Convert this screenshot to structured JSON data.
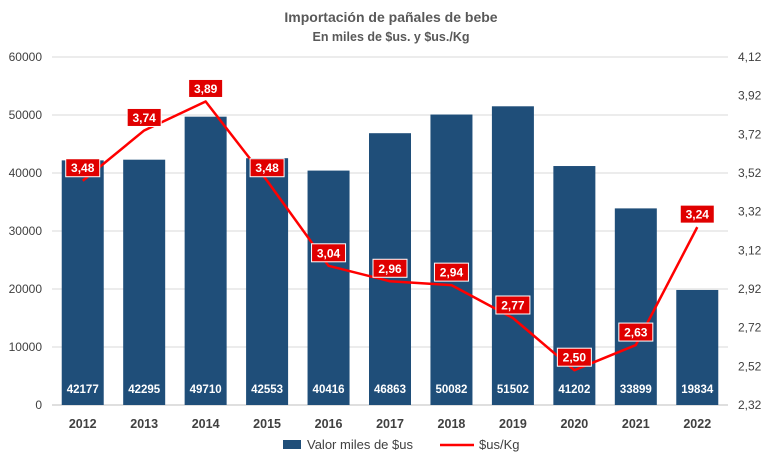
{
  "chart_data": {
    "type": "bar",
    "title": "Importación de pañales de bebe",
    "subtitle": "En miles de $us. y $us./Kg",
    "categories": [
      "2012",
      "2013",
      "2014",
      "2015",
      "2016",
      "2017",
      "2018",
      "2019",
      "2020",
      "2021",
      "2022"
    ],
    "ylim": [
      0,
      60000
    ],
    "y_ticks": [
      "0",
      "10000",
      "20000",
      "30000",
      "40000",
      "50000",
      "60000"
    ],
    "y2lim": [
      2.32,
      4.12
    ],
    "y2_ticks": [
      "2,32",
      "2,52",
      "2,72",
      "2,92",
      "3,12",
      "3,32",
      "3,52",
      "3,72",
      "3,92",
      "4,12"
    ],
    "grid": true,
    "legend_position": "bottom",
    "series": [
      {
        "name": "Valor miles de $us",
        "type": "bar",
        "axis": "left",
        "color": "#1F4E79",
        "values": [
          42177,
          42295,
          49710,
          42553,
          40416,
          46863,
          50082,
          51502,
          41202,
          33899,
          19834
        ],
        "labels": [
          "42177",
          "42295",
          "49710",
          "42553",
          "40416",
          "46863",
          "50082",
          "51502",
          "41202",
          "33899",
          "19834"
        ]
      },
      {
        "name": "$us/Kg",
        "type": "line",
        "axis": "right",
        "color": "#FF0000",
        "values": [
          3.48,
          3.74,
          3.89,
          3.48,
          3.04,
          2.96,
          2.94,
          2.77,
          2.5,
          2.63,
          3.24
        ],
        "labels": [
          "3,48",
          "3,74",
          "3,89",
          "3,48",
          "3,04",
          "2,96",
          "2,94",
          "2,77",
          "2,50",
          "2,63",
          "3,24"
        ]
      }
    ]
  }
}
